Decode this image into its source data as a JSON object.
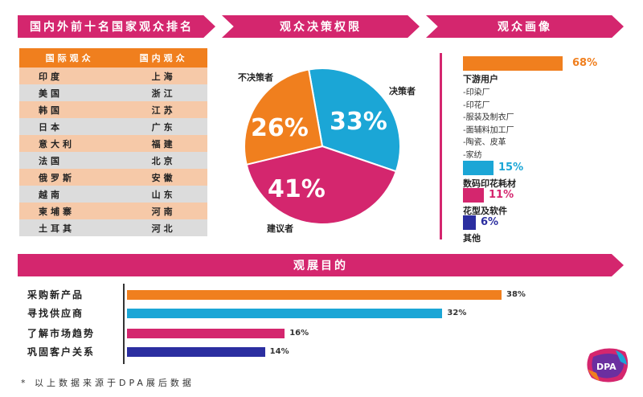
{
  "headers": {
    "ranking": "国内外前十名国家观众排名",
    "authority": "观众决策权限",
    "profile": "观众画像",
    "purpose": "观展目的"
  },
  "ranking": {
    "col_intl": "国际观众",
    "col_domestic": "国内观众",
    "rows": [
      {
        "intl": "印度",
        "domestic": "上海"
      },
      {
        "intl": "美国",
        "domestic": "浙江"
      },
      {
        "intl": "韩国",
        "domestic": "江苏"
      },
      {
        "intl": "日本",
        "domestic": "广东"
      },
      {
        "intl": "意大利",
        "domestic": "福建"
      },
      {
        "intl": "法国",
        "domestic": "北京"
      },
      {
        "intl": "俄罗斯",
        "domestic": "安徽"
      },
      {
        "intl": "越南",
        "domestic": "山东"
      },
      {
        "intl": "柬埔寨",
        "domestic": "河南"
      },
      {
        "intl": "土耳其",
        "domestic": "河北"
      }
    ]
  },
  "profile": {
    "items": [
      {
        "pct": "68%",
        "label": "下游用户",
        "color": "#f07f1e",
        "value": 68,
        "subs": [
          "-印染厂",
          "-印花厂",
          "-服装及制衣厂",
          "-面辅料加工厂",
          "-陶瓷、皮革",
          "-家纺"
        ]
      },
      {
        "pct": "15%",
        "label": "数码印花耗材",
        "color": "#1ba6d6",
        "value": 15,
        "subs": []
      },
      {
        "pct": "11%",
        "label": "花型及软件",
        "color": "#d4266e",
        "value": 11,
        "subs": []
      },
      {
        "pct": "6%",
        "label": "其他",
        "color": "#2b2ea0",
        "value": 6,
        "subs": []
      }
    ]
  },
  "footnote": "* 以上数据来源于DPA展后数据",
  "logo_text": "DPA",
  "chart_data": [
    {
      "type": "pie",
      "title": "观众决策权限",
      "slices": [
        {
          "label": "决策者",
          "value": 33,
          "color": "#1ba6d6"
        },
        {
          "label": "建议者",
          "value": 41,
          "color": "#d4266e"
        },
        {
          "label": "不决策者",
          "value": 26,
          "color": "#f07f1e"
        }
      ]
    },
    {
      "type": "bar",
      "title": "观展目的",
      "orientation": "horizontal",
      "categories": [
        "采购新产品",
        "寻找供应商",
        "了解市场趋势",
        "巩固客户关系"
      ],
      "values": [
        38,
        32,
        16,
        14
      ],
      "colors": [
        "#f07f1e",
        "#1ba6d6",
        "#d4266e",
        "#2b2ea0"
      ],
      "value_suffix": "%"
    }
  ]
}
